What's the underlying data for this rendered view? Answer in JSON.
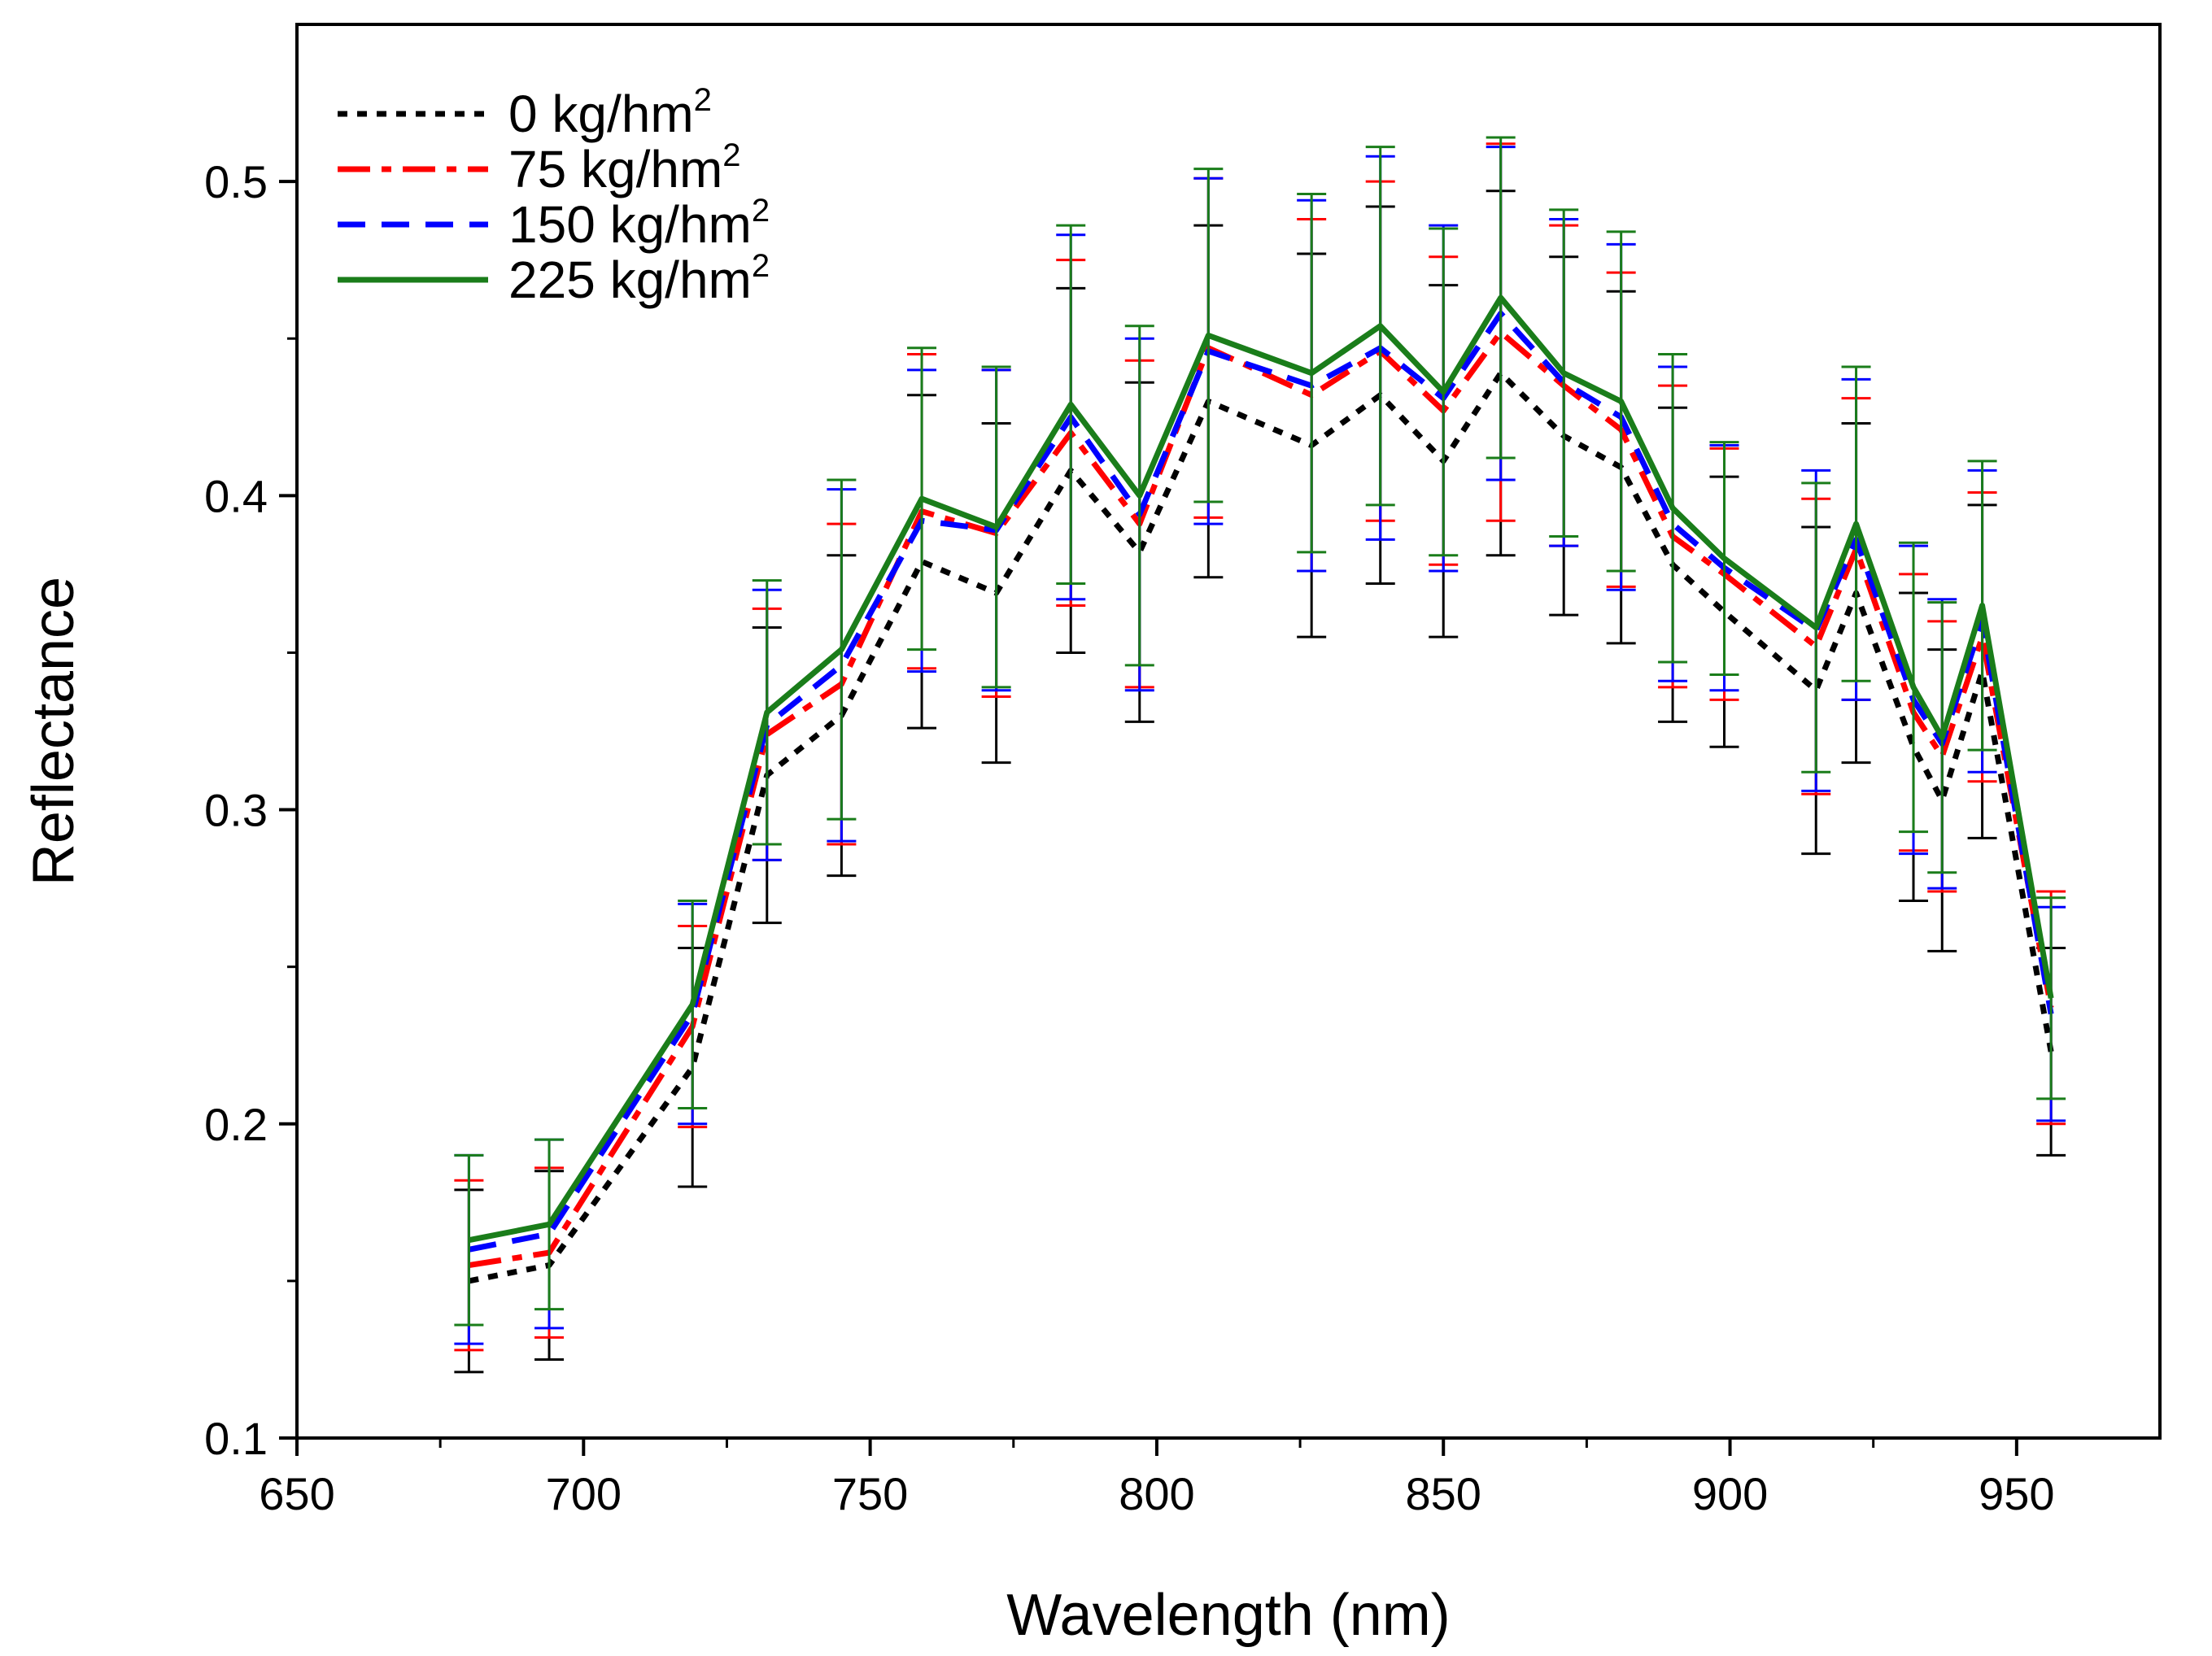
{
  "chart_data": {
    "type": "line",
    "title": "",
    "xlabel": "Wavelength (nm)",
    "ylabel": "Reflectance",
    "xlim": [
      650,
      975
    ],
    "ylim": [
      0.1,
      0.55
    ],
    "xticks": [
      650,
      700,
      750,
      800,
      850,
      900,
      950
    ],
    "xtick_labels": [
      "650",
      "700",
      "750",
      "800",
      "850",
      "900",
      "950"
    ],
    "yticks": [
      0.1,
      0.2,
      0.3,
      0.4,
      0.5
    ],
    "ytick_labels": [
      "0.1",
      "0.2",
      "0.3",
      "0.4",
      "0.5"
    ],
    "legend_position": "top-left",
    "x": [
      680,
      694,
      719,
      732,
      745,
      759,
      772,
      785,
      797,
      809,
      827,
      839,
      850,
      860,
      871,
      881,
      890,
      899,
      915,
      922,
      932,
      937,
      944,
      956
    ],
    "series": [
      {
        "name": "0 kg/hm",
        "superscript": "2",
        "color": "#000000",
        "dash": "dotted",
        "values": [
          0.15,
          0.155,
          0.218,
          0.311,
          0.33,
          0.379,
          0.369,
          0.408,
          0.382,
          0.43,
          0.416,
          0.432,
          0.411,
          0.439,
          0.419,
          0.409,
          0.378,
          0.363,
          0.338,
          0.369,
          0.32,
          0.303,
          0.344,
          0.223
        ],
        "errors": [
          0.029,
          0.03,
          0.038,
          0.047,
          0.051,
          0.053,
          0.054,
          0.058,
          0.054,
          0.056,
          0.061,
          0.06,
          0.056,
          0.058,
          0.057,
          0.056,
          0.05,
          0.043,
          0.052,
          0.054,
          0.049,
          0.048,
          0.053,
          0.033
        ]
      },
      {
        "name": "75 kg/hm",
        "superscript": "2",
        "color": "#ff0000",
        "dash": "dashdot",
        "values": [
          0.155,
          0.159,
          0.231,
          0.324,
          0.34,
          0.395,
          0.388,
          0.42,
          0.391,
          0.447,
          0.432,
          0.446,
          0.427,
          0.452,
          0.435,
          0.421,
          0.387,
          0.375,
          0.352,
          0.383,
          0.331,
          0.317,
          0.355,
          0.237
        ],
        "errors": [
          0.027,
          0.027,
          0.032,
          0.04,
          0.051,
          0.05,
          0.052,
          0.055,
          0.052,
          0.054,
          0.056,
          0.054,
          0.049,
          0.06,
          0.051,
          0.05,
          0.048,
          0.04,
          0.047,
          0.048,
          0.044,
          0.043,
          0.046,
          0.037
        ]
      },
      {
        "name": "150 kg/hm",
        "superscript": "2",
        "color": "#0000ff",
        "dash": "dashed",
        "values": [
          0.16,
          0.165,
          0.235,
          0.327,
          0.346,
          0.392,
          0.389,
          0.425,
          0.394,
          0.446,
          0.435,
          0.447,
          0.431,
          0.458,
          0.436,
          0.425,
          0.391,
          0.377,
          0.357,
          0.386,
          0.335,
          0.321,
          0.36,
          0.235
        ],
        "errors": [
          0.03,
          0.03,
          0.035,
          0.043,
          0.056,
          0.048,
          0.051,
          0.058,
          0.056,
          0.055,
          0.059,
          0.061,
          0.055,
          0.053,
          0.052,
          0.055,
          0.05,
          0.039,
          0.051,
          0.051,
          0.049,
          0.046,
          0.048,
          0.034
        ]
      },
      {
        "name": "225 kg/hm",
        "superscript": "2",
        "color": "#1a7d1a",
        "dash": "solid",
        "values": [
          0.163,
          0.168,
          0.238,
          0.331,
          0.351,
          0.399,
          0.39,
          0.429,
          0.4,
          0.451,
          0.439,
          0.454,
          0.433,
          0.463,
          0.439,
          0.43,
          0.396,
          0.38,
          0.358,
          0.391,
          0.339,
          0.323,
          0.365,
          0.24
        ],
        "errors": [
          0.027,
          0.027,
          0.033,
          0.042,
          0.054,
          0.048,
          0.051,
          0.057,
          0.054,
          0.053,
          0.057,
          0.057,
          0.052,
          0.051,
          0.052,
          0.054,
          0.049,
          0.037,
          0.046,
          0.05,
          0.046,
          0.043,
          0.046,
          0.032
        ]
      }
    ]
  }
}
